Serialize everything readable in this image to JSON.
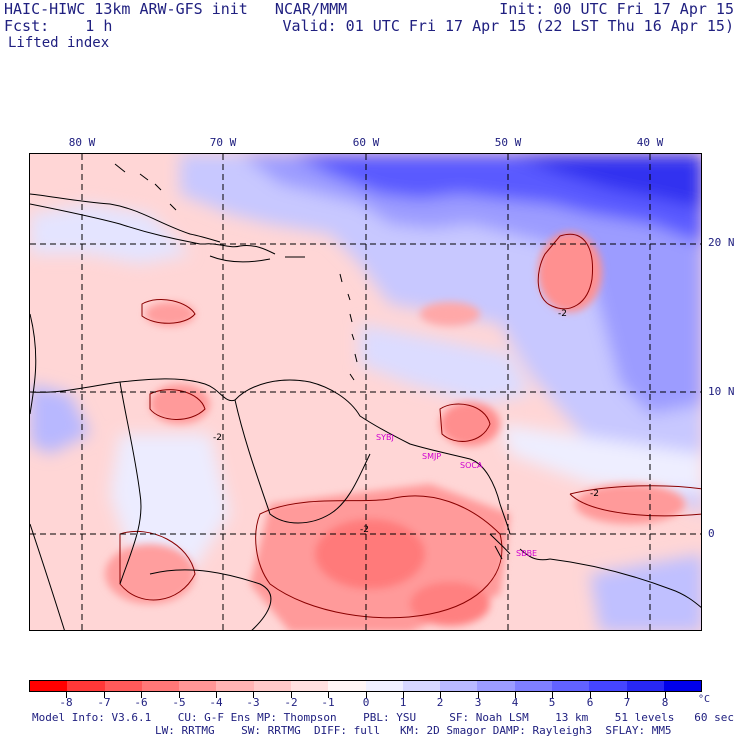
{
  "header": {
    "title": "HAIC-HIWC 13km ARW-GFS init   NCAR/MMM",
    "init": "Init: 00 UTC Fri 17 Apr 15",
    "fcst": "Fcst:    1 h",
    "valid": "Valid: 01 UTC Fri 17 Apr 15 (22 LST Thu 16 Apr 15)",
    "field": "Lifted index"
  },
  "map": {
    "lon_labels": [
      "80 W",
      "70 W",
      "60 W",
      "50 W",
      "40 W"
    ],
    "lat_labels": [
      "20 N",
      "10 N",
      "0"
    ],
    "stations": [
      "SYBJ",
      "SMJP",
      "SOCA",
      "SBBE"
    ],
    "contour_labels": [
      "-2",
      "-2",
      "-2",
      "-2"
    ]
  },
  "colorbar": {
    "colors": [
      "#ff0000",
      "#ff3838",
      "#ff5a5a",
      "#ff7878",
      "#ff9696",
      "#ffb4b4",
      "#ffcaca",
      "#ffe0e0",
      "#fff6f6",
      "#f0f0ff",
      "#d7d7ff",
      "#b9b9ff",
      "#9c9cff",
      "#7f7fff",
      "#6262ff",
      "#4545ff",
      "#2828f5",
      "#0000ea"
    ],
    "tick_labels": [
      "-8",
      "-7",
      "-6",
      "-5",
      "-4",
      "-3",
      "-2",
      "-1",
      "0",
      "1",
      "2",
      "3",
      "4",
      "5",
      "6",
      "7",
      "8"
    ],
    "unit": "°C"
  },
  "model_info": {
    "line1": "Model Info: V3.6.1    CU: G-F Ens MP: Thompson    PBL: YSU     SF: Noah LSM    13 km    51 levels   60 sec",
    "line2": "LW: RRTMG    SW: RRTMG  DIFF: full   KM: 2D Smagor DAMP: Rayleigh3  SFLAY: MM5"
  }
}
